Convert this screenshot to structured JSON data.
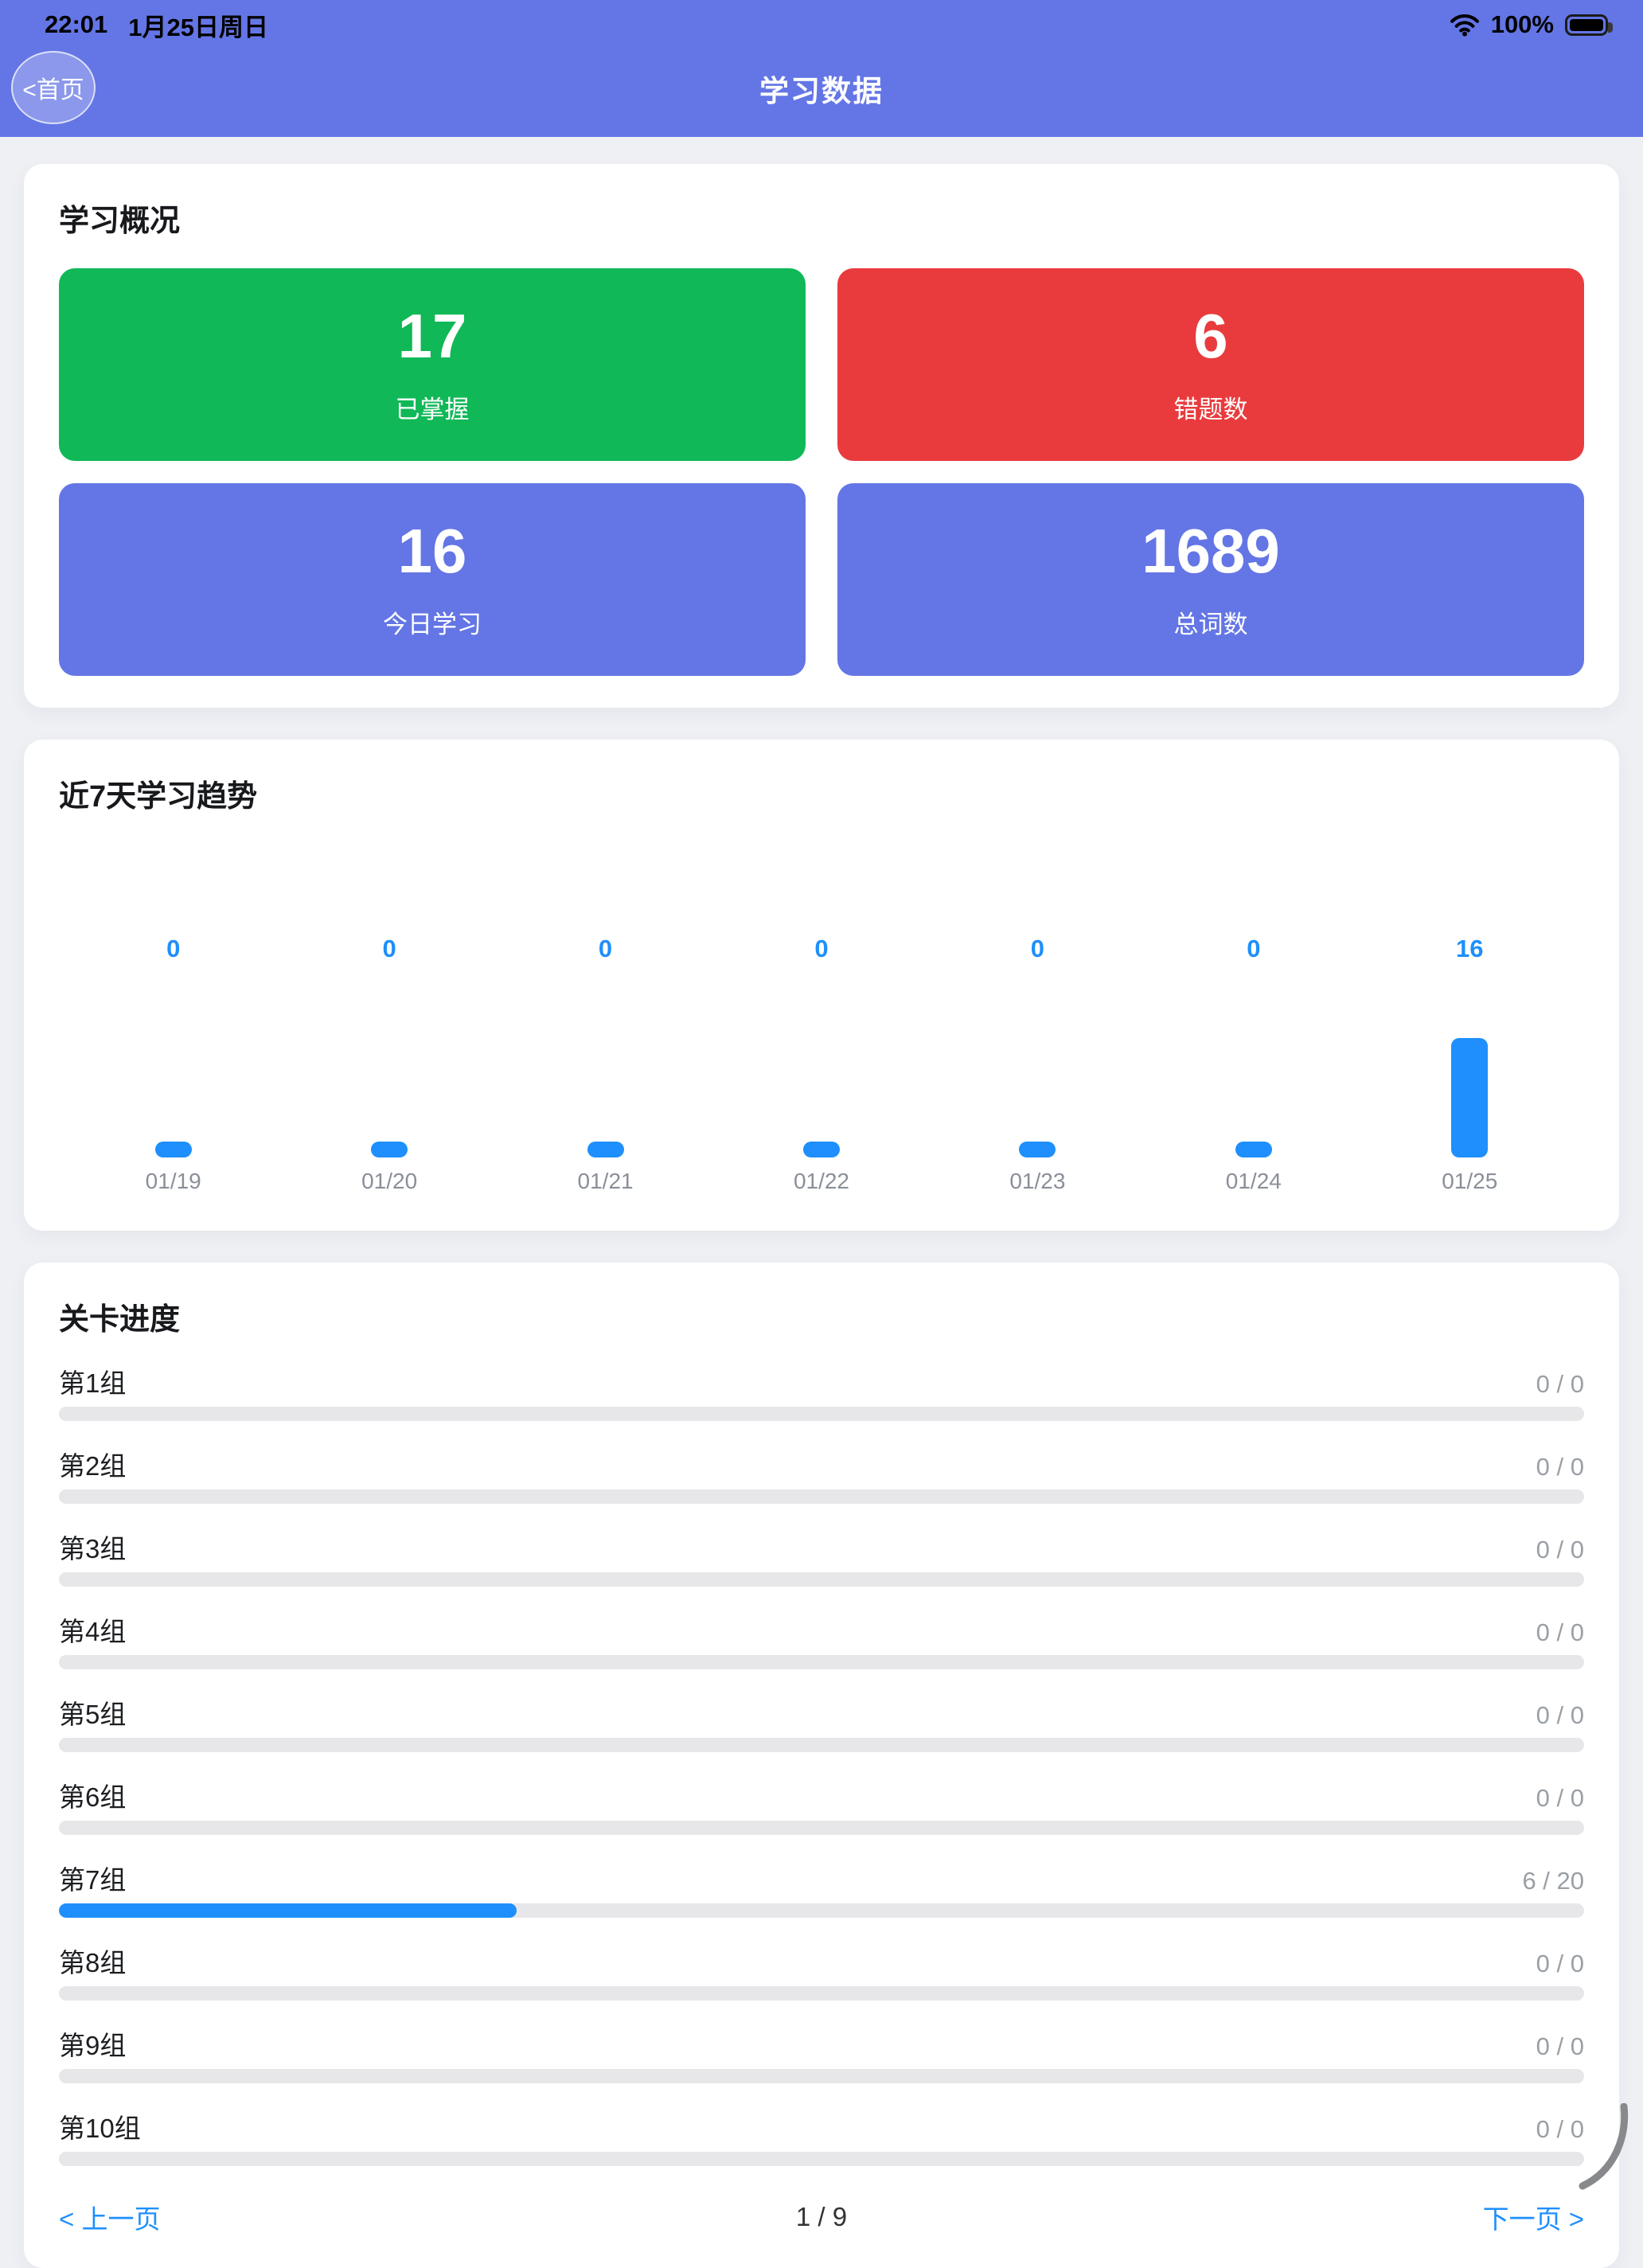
{
  "status_bar": {
    "time": "22:01",
    "date": "1月25日周日",
    "battery": "100%"
  },
  "header": {
    "back_label": "<首页",
    "title": "学习数据"
  },
  "overview": {
    "title": "学习概况",
    "stats": [
      {
        "value": "17",
        "label": "已掌握",
        "color": "#10b857"
      },
      {
        "value": "6",
        "label": "错题数",
        "color": "#e93b3d"
      },
      {
        "value": "16",
        "label": "今日学习",
        "color": "#6476e5"
      },
      {
        "value": "1689",
        "label": "总词数",
        "color": "#6476e5"
      }
    ]
  },
  "chart_data": {
    "type": "bar",
    "title": "近7天学习趋势",
    "categories": [
      "01/19",
      "01/20",
      "01/21",
      "01/22",
      "01/23",
      "01/24",
      "01/25"
    ],
    "values": [
      0,
      0,
      0,
      0,
      0,
      0,
      16
    ],
    "value_labels": [
      "0",
      "0",
      "0",
      "0",
      "0",
      "0",
      "16"
    ],
    "bar_color": "#1e8ffc",
    "label_color": "#1e8ffc",
    "ylim": [
      0,
      16
    ],
    "grid": false,
    "legend": "none"
  },
  "progress": {
    "title": "关卡进度",
    "rows": [
      {
        "label": "第1组",
        "value": "0 / 0",
        "progress": 0
      },
      {
        "label": "第2组",
        "value": "0 / 0",
        "progress": 0
      },
      {
        "label": "第3组",
        "value": "0 / 0",
        "progress": 0
      },
      {
        "label": "第4组",
        "value": "0 / 0",
        "progress": 0
      },
      {
        "label": "第5组",
        "value": "0 / 0",
        "progress": 0
      },
      {
        "label": "第6组",
        "value": "0 / 0",
        "progress": 0
      },
      {
        "label": "第7组",
        "value": "6 / 20",
        "progress": 0.3
      },
      {
        "label": "第8组",
        "value": "0 / 0",
        "progress": 0
      },
      {
        "label": "第9组",
        "value": "0 / 0",
        "progress": 0
      },
      {
        "label": "第10组",
        "value": "0 / 0",
        "progress": 0
      }
    ]
  },
  "pagination": {
    "prev": "< 上一页",
    "page": "1 / 9",
    "next": "下一页 >"
  },
  "colors": {
    "header": "#6476e5",
    "green": "#10b857",
    "red": "#e93b3d",
    "accent_blue": "#1e8ffc",
    "page_bg": "#eef0f4",
    "track": "#e7e7e9"
  }
}
